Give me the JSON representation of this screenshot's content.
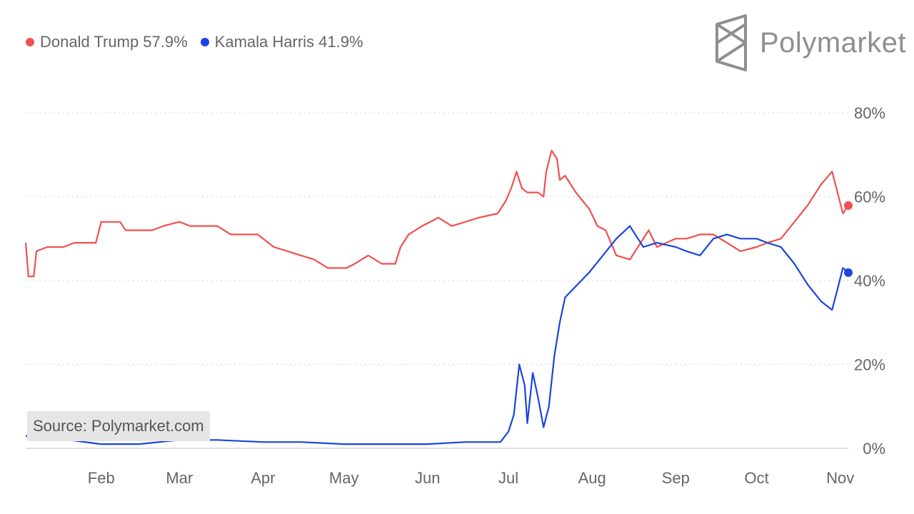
{
  "brand": {
    "name": "Polymarket",
    "icon": "polymarket-logo-icon"
  },
  "source": "Source: Polymarket.com",
  "legend": [
    {
      "label": "Donald Trump 57.9%",
      "color": "#f0504f"
    },
    {
      "label": "Kamala Harris 41.9%",
      "color": "#1a45e0"
    }
  ],
  "chart_data": {
    "type": "line",
    "y_ticks": [
      "0%",
      "20%",
      "40%",
      "60%",
      "80%"
    ],
    "ylim": [
      0,
      80
    ],
    "x_ticks": [
      "Feb",
      "Mar",
      "Apr",
      "May",
      "Jun",
      "Jul",
      "Aug",
      "Sep",
      "Oct",
      "Nov"
    ],
    "x_tick_dates": [
      "2024-02-01",
      "2024-03-01",
      "2024-04-01",
      "2024-05-01",
      "2024-06-01",
      "2024-07-01",
      "2024-08-01",
      "2024-09-01",
      "2024-10-01",
      "2024-11-01"
    ],
    "xlim": [
      "2024-01-04",
      "2024-11-04"
    ],
    "grid": true,
    "legend_position": "top-left",
    "series": [
      {
        "name": "Donald Trump",
        "color": "#f0504f",
        "end_value": 57.9,
        "points": [
          [
            "2024-01-04",
            49
          ],
          [
            "2024-01-05",
            41
          ],
          [
            "2024-01-07",
            41
          ],
          [
            "2024-01-08",
            47
          ],
          [
            "2024-01-12",
            48
          ],
          [
            "2024-01-18",
            48
          ],
          [
            "2024-01-22",
            49
          ],
          [
            "2024-01-30",
            49
          ],
          [
            "2024-02-01",
            54
          ],
          [
            "2024-02-08",
            54
          ],
          [
            "2024-02-10",
            52
          ],
          [
            "2024-02-20",
            52
          ],
          [
            "2024-02-24",
            53
          ],
          [
            "2024-03-01",
            54
          ],
          [
            "2024-03-05",
            53
          ],
          [
            "2024-03-10",
            53
          ],
          [
            "2024-03-15",
            53
          ],
          [
            "2024-03-20",
            51
          ],
          [
            "2024-03-30",
            51
          ],
          [
            "2024-04-05",
            48
          ],
          [
            "2024-04-15",
            46
          ],
          [
            "2024-04-20",
            45
          ],
          [
            "2024-04-25",
            43
          ],
          [
            "2024-05-02",
            43
          ],
          [
            "2024-05-05",
            44
          ],
          [
            "2024-05-10",
            46
          ],
          [
            "2024-05-15",
            44
          ],
          [
            "2024-05-20",
            44
          ],
          [
            "2024-05-22",
            48
          ],
          [
            "2024-05-25",
            51
          ],
          [
            "2024-05-30",
            53
          ],
          [
            "2024-06-05",
            55
          ],
          [
            "2024-06-10",
            53
          ],
          [
            "2024-06-15",
            54
          ],
          [
            "2024-06-20",
            55
          ],
          [
            "2024-06-27",
            56
          ],
          [
            "2024-06-30",
            59
          ],
          [
            "2024-07-02",
            62
          ],
          [
            "2024-07-04",
            66
          ],
          [
            "2024-07-06",
            62
          ],
          [
            "2024-07-08",
            61
          ],
          [
            "2024-07-12",
            61
          ],
          [
            "2024-07-14",
            60
          ],
          [
            "2024-07-15",
            66
          ],
          [
            "2024-07-17",
            71
          ],
          [
            "2024-07-19",
            69
          ],
          [
            "2024-07-20",
            64
          ],
          [
            "2024-07-22",
            65
          ],
          [
            "2024-07-26",
            61
          ],
          [
            "2024-07-31",
            57
          ],
          [
            "2024-08-03",
            53
          ],
          [
            "2024-08-06",
            52
          ],
          [
            "2024-08-10",
            46
          ],
          [
            "2024-08-15",
            45
          ],
          [
            "2024-08-18",
            48
          ],
          [
            "2024-08-22",
            52
          ],
          [
            "2024-08-25",
            48
          ],
          [
            "2024-09-01",
            50
          ],
          [
            "2024-09-05",
            50
          ],
          [
            "2024-09-10",
            51
          ],
          [
            "2024-09-15",
            51
          ],
          [
            "2024-09-20",
            49
          ],
          [
            "2024-09-25",
            47
          ],
          [
            "2024-10-01",
            48
          ],
          [
            "2024-10-05",
            49
          ],
          [
            "2024-10-10",
            50
          ],
          [
            "2024-10-15",
            54
          ],
          [
            "2024-10-20",
            58
          ],
          [
            "2024-10-25",
            63
          ],
          [
            "2024-10-29",
            66
          ],
          [
            "2024-10-31",
            61
          ],
          [
            "2024-11-02",
            56
          ],
          [
            "2024-11-04",
            57.9
          ]
        ]
      },
      {
        "name": "Kamala Harris",
        "color": "#1a45e0",
        "end_value": 41.9,
        "points": [
          [
            "2024-01-04",
            3
          ],
          [
            "2024-01-10",
            2
          ],
          [
            "2024-01-20",
            2
          ],
          [
            "2024-02-01",
            1
          ],
          [
            "2024-02-15",
            1
          ],
          [
            "2024-03-01",
            2
          ],
          [
            "2024-03-15",
            2
          ],
          [
            "2024-04-01",
            1.5
          ],
          [
            "2024-04-15",
            1.5
          ],
          [
            "2024-05-01",
            1
          ],
          [
            "2024-05-15",
            1
          ],
          [
            "2024-06-01",
            1
          ],
          [
            "2024-06-15",
            1.5
          ],
          [
            "2024-06-28",
            1.5
          ],
          [
            "2024-07-01",
            4
          ],
          [
            "2024-07-03",
            8
          ],
          [
            "2024-07-05",
            20
          ],
          [
            "2024-07-07",
            15
          ],
          [
            "2024-07-08",
            6
          ],
          [
            "2024-07-10",
            18
          ],
          [
            "2024-07-12",
            12
          ],
          [
            "2024-07-14",
            5
          ],
          [
            "2024-07-16",
            10
          ],
          [
            "2024-07-18",
            22
          ],
          [
            "2024-07-20",
            30
          ],
          [
            "2024-07-22",
            36
          ],
          [
            "2024-07-25",
            38
          ],
          [
            "2024-07-28",
            40
          ],
          [
            "2024-07-31",
            42
          ],
          [
            "2024-08-05",
            46
          ],
          [
            "2024-08-10",
            50
          ],
          [
            "2024-08-15",
            53
          ],
          [
            "2024-08-20",
            48
          ],
          [
            "2024-08-25",
            49
          ],
          [
            "2024-09-01",
            48
          ],
          [
            "2024-09-05",
            47
          ],
          [
            "2024-09-10",
            46
          ],
          [
            "2024-09-15",
            50
          ],
          [
            "2024-09-20",
            51
          ],
          [
            "2024-09-25",
            50
          ],
          [
            "2024-10-01",
            50
          ],
          [
            "2024-10-05",
            49
          ],
          [
            "2024-10-10",
            48
          ],
          [
            "2024-10-15",
            44
          ],
          [
            "2024-10-20",
            39
          ],
          [
            "2024-10-25",
            35
          ],
          [
            "2024-10-29",
            33
          ],
          [
            "2024-10-31",
            38
          ],
          [
            "2024-11-02",
            43
          ],
          [
            "2024-11-04",
            41.9
          ]
        ]
      }
    ]
  }
}
